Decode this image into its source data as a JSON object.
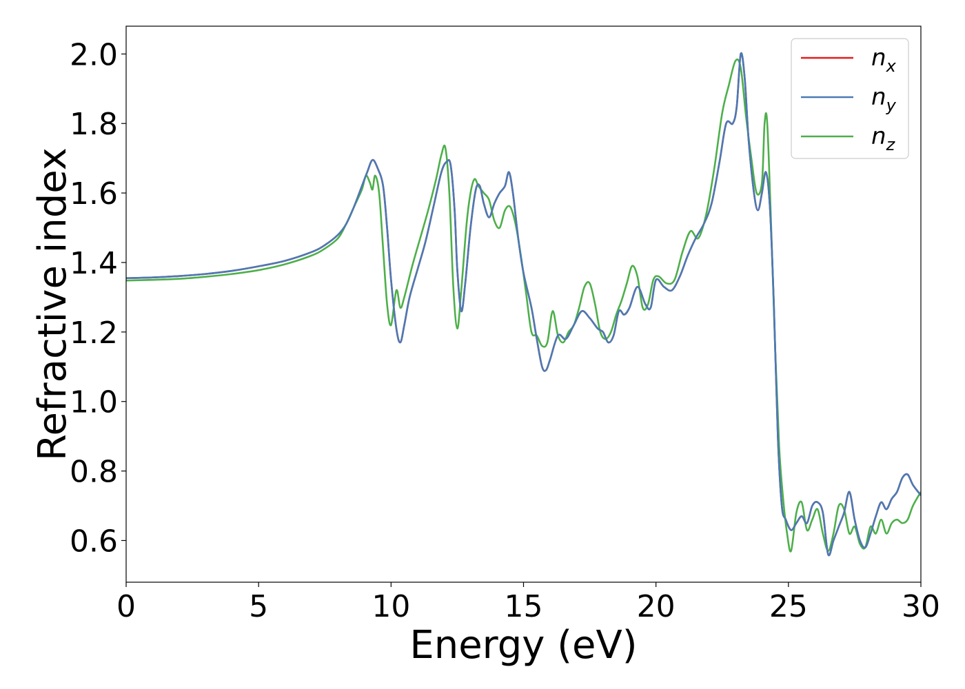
{
  "chart_data": {
    "type": "line",
    "title": "",
    "xlabel": "Energy (eV)",
    "ylabel": "Refractive index",
    "xlim": [
      0,
      30
    ],
    "ylim": [
      0.48,
      2.08
    ],
    "xticks": [
      0,
      5,
      10,
      15,
      20,
      25,
      30
    ],
    "xtick_labels": [
      "0",
      "5",
      "10",
      "15",
      "20",
      "25",
      "30"
    ],
    "yticks": [
      0.6,
      0.8,
      1.0,
      1.2,
      1.4,
      1.6,
      1.8,
      2.0
    ],
    "ytick_labels": [
      "0.6",
      "0.8",
      "1.0",
      "1.2",
      "1.4",
      "1.6",
      "1.8",
      "2.0"
    ],
    "grid": false,
    "legend_position": "top-right",
    "series": [
      {
        "name": "n_x",
        "label_base": "n",
        "label_sub": "x",
        "color": "#e41a1c",
        "x": [
          0,
          1,
          2,
          3,
          4,
          5,
          6,
          7,
          7.5,
          8,
          8.3,
          8.6,
          8.9,
          9.1,
          9.3,
          9.5,
          9.7,
          9.85,
          10.0,
          10.2,
          10.35,
          10.5,
          10.7,
          11.0,
          11.3,
          11.6,
          11.9,
          12.1,
          12.25,
          12.4,
          12.5,
          12.65,
          12.8,
          13.0,
          13.2,
          13.35,
          13.5,
          13.7,
          13.9,
          14.1,
          14.3,
          14.45,
          14.6,
          14.8,
          15.0,
          15.3,
          15.5,
          15.7,
          15.85,
          16.0,
          16.3,
          16.6,
          16.9,
          17.2,
          17.5,
          17.8,
          18.0,
          18.2,
          18.4,
          18.6,
          18.8,
          19.0,
          19.3,
          19.6,
          19.8,
          20.0,
          20.3,
          20.6,
          20.9,
          21.2,
          21.5,
          21.8,
          22.1,
          22.4,
          22.65,
          22.9,
          23.05,
          23.2,
          23.35,
          23.5,
          23.7,
          23.85,
          24.0,
          24.15,
          24.3,
          24.45,
          24.6,
          24.75,
          24.9,
          25.1,
          25.3,
          25.5,
          25.7,
          25.9,
          26.1,
          26.3,
          26.5,
          26.7,
          26.9,
          27.1,
          27.3,
          27.5,
          27.7,
          27.9,
          28.1,
          28.3,
          28.5,
          28.7,
          28.9,
          29.1,
          29.3,
          29.5,
          29.7,
          30.0
        ],
        "y": [
          1.355,
          1.357,
          1.361,
          1.367,
          1.376,
          1.389,
          1.405,
          1.43,
          1.45,
          1.48,
          1.51,
          1.56,
          1.62,
          1.66,
          1.695,
          1.67,
          1.62,
          1.5,
          1.35,
          1.21,
          1.17,
          1.22,
          1.3,
          1.38,
          1.46,
          1.56,
          1.66,
          1.69,
          1.68,
          1.55,
          1.38,
          1.26,
          1.34,
          1.5,
          1.61,
          1.62,
          1.57,
          1.53,
          1.57,
          1.6,
          1.62,
          1.66,
          1.6,
          1.47,
          1.37,
          1.27,
          1.18,
          1.1,
          1.09,
          1.12,
          1.19,
          1.18,
          1.22,
          1.26,
          1.24,
          1.21,
          1.2,
          1.17,
          1.19,
          1.26,
          1.25,
          1.27,
          1.33,
          1.28,
          1.27,
          1.35,
          1.33,
          1.32,
          1.36,
          1.42,
          1.47,
          1.51,
          1.57,
          1.69,
          1.8,
          1.8,
          1.85,
          2.0,
          1.93,
          1.75,
          1.6,
          1.55,
          1.6,
          1.66,
          1.56,
          1.28,
          0.9,
          0.7,
          0.66,
          0.63,
          0.65,
          0.67,
          0.65,
          0.7,
          0.71,
          0.68,
          0.56,
          0.6,
          0.64,
          0.68,
          0.74,
          0.66,
          0.6,
          0.58,
          0.62,
          0.67,
          0.71,
          0.69,
          0.72,
          0.74,
          0.78,
          0.79,
          0.76,
          0.73
        ],
        "shown": "hidden-under-n_y"
      },
      {
        "name": "n_y",
        "label_base": "n",
        "label_sub": "y",
        "color": "#4a7ab5",
        "x": [
          0,
          1,
          2,
          3,
          4,
          5,
          6,
          7,
          7.5,
          8,
          8.3,
          8.6,
          8.9,
          9.1,
          9.3,
          9.5,
          9.7,
          9.85,
          10.0,
          10.2,
          10.35,
          10.5,
          10.7,
          11.0,
          11.3,
          11.6,
          11.9,
          12.1,
          12.25,
          12.4,
          12.5,
          12.65,
          12.8,
          13.0,
          13.2,
          13.35,
          13.5,
          13.7,
          13.9,
          14.1,
          14.3,
          14.45,
          14.6,
          14.8,
          15.0,
          15.3,
          15.5,
          15.7,
          15.85,
          16.0,
          16.3,
          16.6,
          16.9,
          17.2,
          17.5,
          17.8,
          18.0,
          18.2,
          18.4,
          18.6,
          18.8,
          19.0,
          19.3,
          19.6,
          19.8,
          20.0,
          20.3,
          20.6,
          20.9,
          21.2,
          21.5,
          21.8,
          22.1,
          22.4,
          22.65,
          22.9,
          23.05,
          23.2,
          23.35,
          23.5,
          23.7,
          23.85,
          24.0,
          24.15,
          24.3,
          24.45,
          24.6,
          24.75,
          24.9,
          25.1,
          25.3,
          25.5,
          25.7,
          25.9,
          26.1,
          26.3,
          26.5,
          26.7,
          26.9,
          27.1,
          27.3,
          27.5,
          27.7,
          27.9,
          28.1,
          28.3,
          28.5,
          28.7,
          28.9,
          29.1,
          29.3,
          29.5,
          29.7,
          30.0
        ],
        "y": [
          1.355,
          1.357,
          1.361,
          1.367,
          1.376,
          1.389,
          1.405,
          1.43,
          1.45,
          1.48,
          1.51,
          1.56,
          1.62,
          1.66,
          1.695,
          1.67,
          1.62,
          1.5,
          1.35,
          1.21,
          1.17,
          1.22,
          1.3,
          1.38,
          1.46,
          1.56,
          1.66,
          1.69,
          1.68,
          1.55,
          1.38,
          1.26,
          1.34,
          1.5,
          1.61,
          1.62,
          1.57,
          1.53,
          1.57,
          1.6,
          1.62,
          1.66,
          1.6,
          1.47,
          1.37,
          1.27,
          1.18,
          1.1,
          1.09,
          1.12,
          1.19,
          1.18,
          1.22,
          1.26,
          1.24,
          1.21,
          1.2,
          1.17,
          1.19,
          1.26,
          1.25,
          1.27,
          1.33,
          1.28,
          1.27,
          1.35,
          1.33,
          1.32,
          1.36,
          1.42,
          1.47,
          1.51,
          1.57,
          1.69,
          1.8,
          1.8,
          1.85,
          2.0,
          1.93,
          1.75,
          1.6,
          1.55,
          1.6,
          1.66,
          1.56,
          1.28,
          0.9,
          0.7,
          0.66,
          0.63,
          0.65,
          0.67,
          0.65,
          0.7,
          0.71,
          0.68,
          0.56,
          0.6,
          0.64,
          0.68,
          0.74,
          0.66,
          0.6,
          0.58,
          0.62,
          0.67,
          0.71,
          0.69,
          0.72,
          0.74,
          0.78,
          0.79,
          0.76,
          0.73
        ]
      },
      {
        "name": "n_z",
        "label_base": "n",
        "label_sub": "z",
        "color": "#4daf4a",
        "x": [
          0,
          1,
          2,
          3,
          4,
          5,
          6,
          7,
          7.5,
          8,
          8.3,
          8.6,
          8.9,
          9.05,
          9.2,
          9.3,
          9.4,
          9.55,
          9.7,
          9.85,
          10.0,
          10.2,
          10.35,
          10.5,
          10.8,
          11.1,
          11.4,
          11.7,
          11.9,
          12.05,
          12.2,
          12.35,
          12.5,
          12.65,
          12.85,
          13.0,
          13.15,
          13.3,
          13.5,
          13.7,
          13.9,
          14.1,
          14.3,
          14.5,
          14.7,
          14.9,
          15.1,
          15.3,
          15.5,
          15.7,
          15.9,
          16.1,
          16.3,
          16.5,
          16.7,
          16.9,
          17.1,
          17.3,
          17.5,
          17.7,
          17.9,
          18.1,
          18.3,
          18.5,
          18.7,
          18.9,
          19.1,
          19.3,
          19.5,
          19.7,
          19.9,
          20.1,
          20.4,
          20.7,
          21.0,
          21.3,
          21.6,
          21.9,
          22.2,
          22.5,
          22.75,
          23.0,
          23.2,
          23.4,
          23.6,
          23.8,
          24.0,
          24.1,
          24.2,
          24.35,
          24.5,
          24.65,
          24.8,
          24.95,
          25.1,
          25.3,
          25.5,
          25.7,
          25.9,
          26.1,
          26.3,
          26.5,
          26.7,
          26.9,
          27.1,
          27.3,
          27.5,
          27.7,
          27.9,
          28.1,
          28.3,
          28.5,
          28.7,
          28.9,
          29.1,
          29.3,
          29.5,
          29.7,
          30.0
        ],
        "y": [
          1.348,
          1.35,
          1.353,
          1.359,
          1.367,
          1.378,
          1.395,
          1.42,
          1.44,
          1.47,
          1.51,
          1.56,
          1.61,
          1.65,
          1.63,
          1.61,
          1.65,
          1.6,
          1.44,
          1.28,
          1.22,
          1.32,
          1.27,
          1.3,
          1.39,
          1.47,
          1.55,
          1.64,
          1.71,
          1.73,
          1.6,
          1.33,
          1.21,
          1.32,
          1.51,
          1.6,
          1.64,
          1.62,
          1.6,
          1.58,
          1.52,
          1.5,
          1.55,
          1.56,
          1.51,
          1.42,
          1.31,
          1.2,
          1.19,
          1.16,
          1.17,
          1.26,
          1.19,
          1.17,
          1.2,
          1.22,
          1.27,
          1.33,
          1.34,
          1.28,
          1.2,
          1.18,
          1.2,
          1.25,
          1.29,
          1.34,
          1.39,
          1.36,
          1.27,
          1.28,
          1.35,
          1.36,
          1.34,
          1.35,
          1.43,
          1.49,
          1.47,
          1.54,
          1.67,
          1.83,
          1.91,
          1.98,
          1.96,
          1.82,
          1.7,
          1.6,
          1.63,
          1.8,
          1.8,
          1.5,
          1.15,
          0.87,
          0.72,
          0.62,
          0.57,
          0.68,
          0.71,
          0.63,
          0.66,
          0.69,
          0.62,
          0.57,
          0.62,
          0.7,
          0.69,
          0.62,
          0.64,
          0.59,
          0.58,
          0.64,
          0.62,
          0.66,
          0.62,
          0.65,
          0.66,
          0.65,
          0.66,
          0.7,
          0.74
        ]
      }
    ]
  }
}
